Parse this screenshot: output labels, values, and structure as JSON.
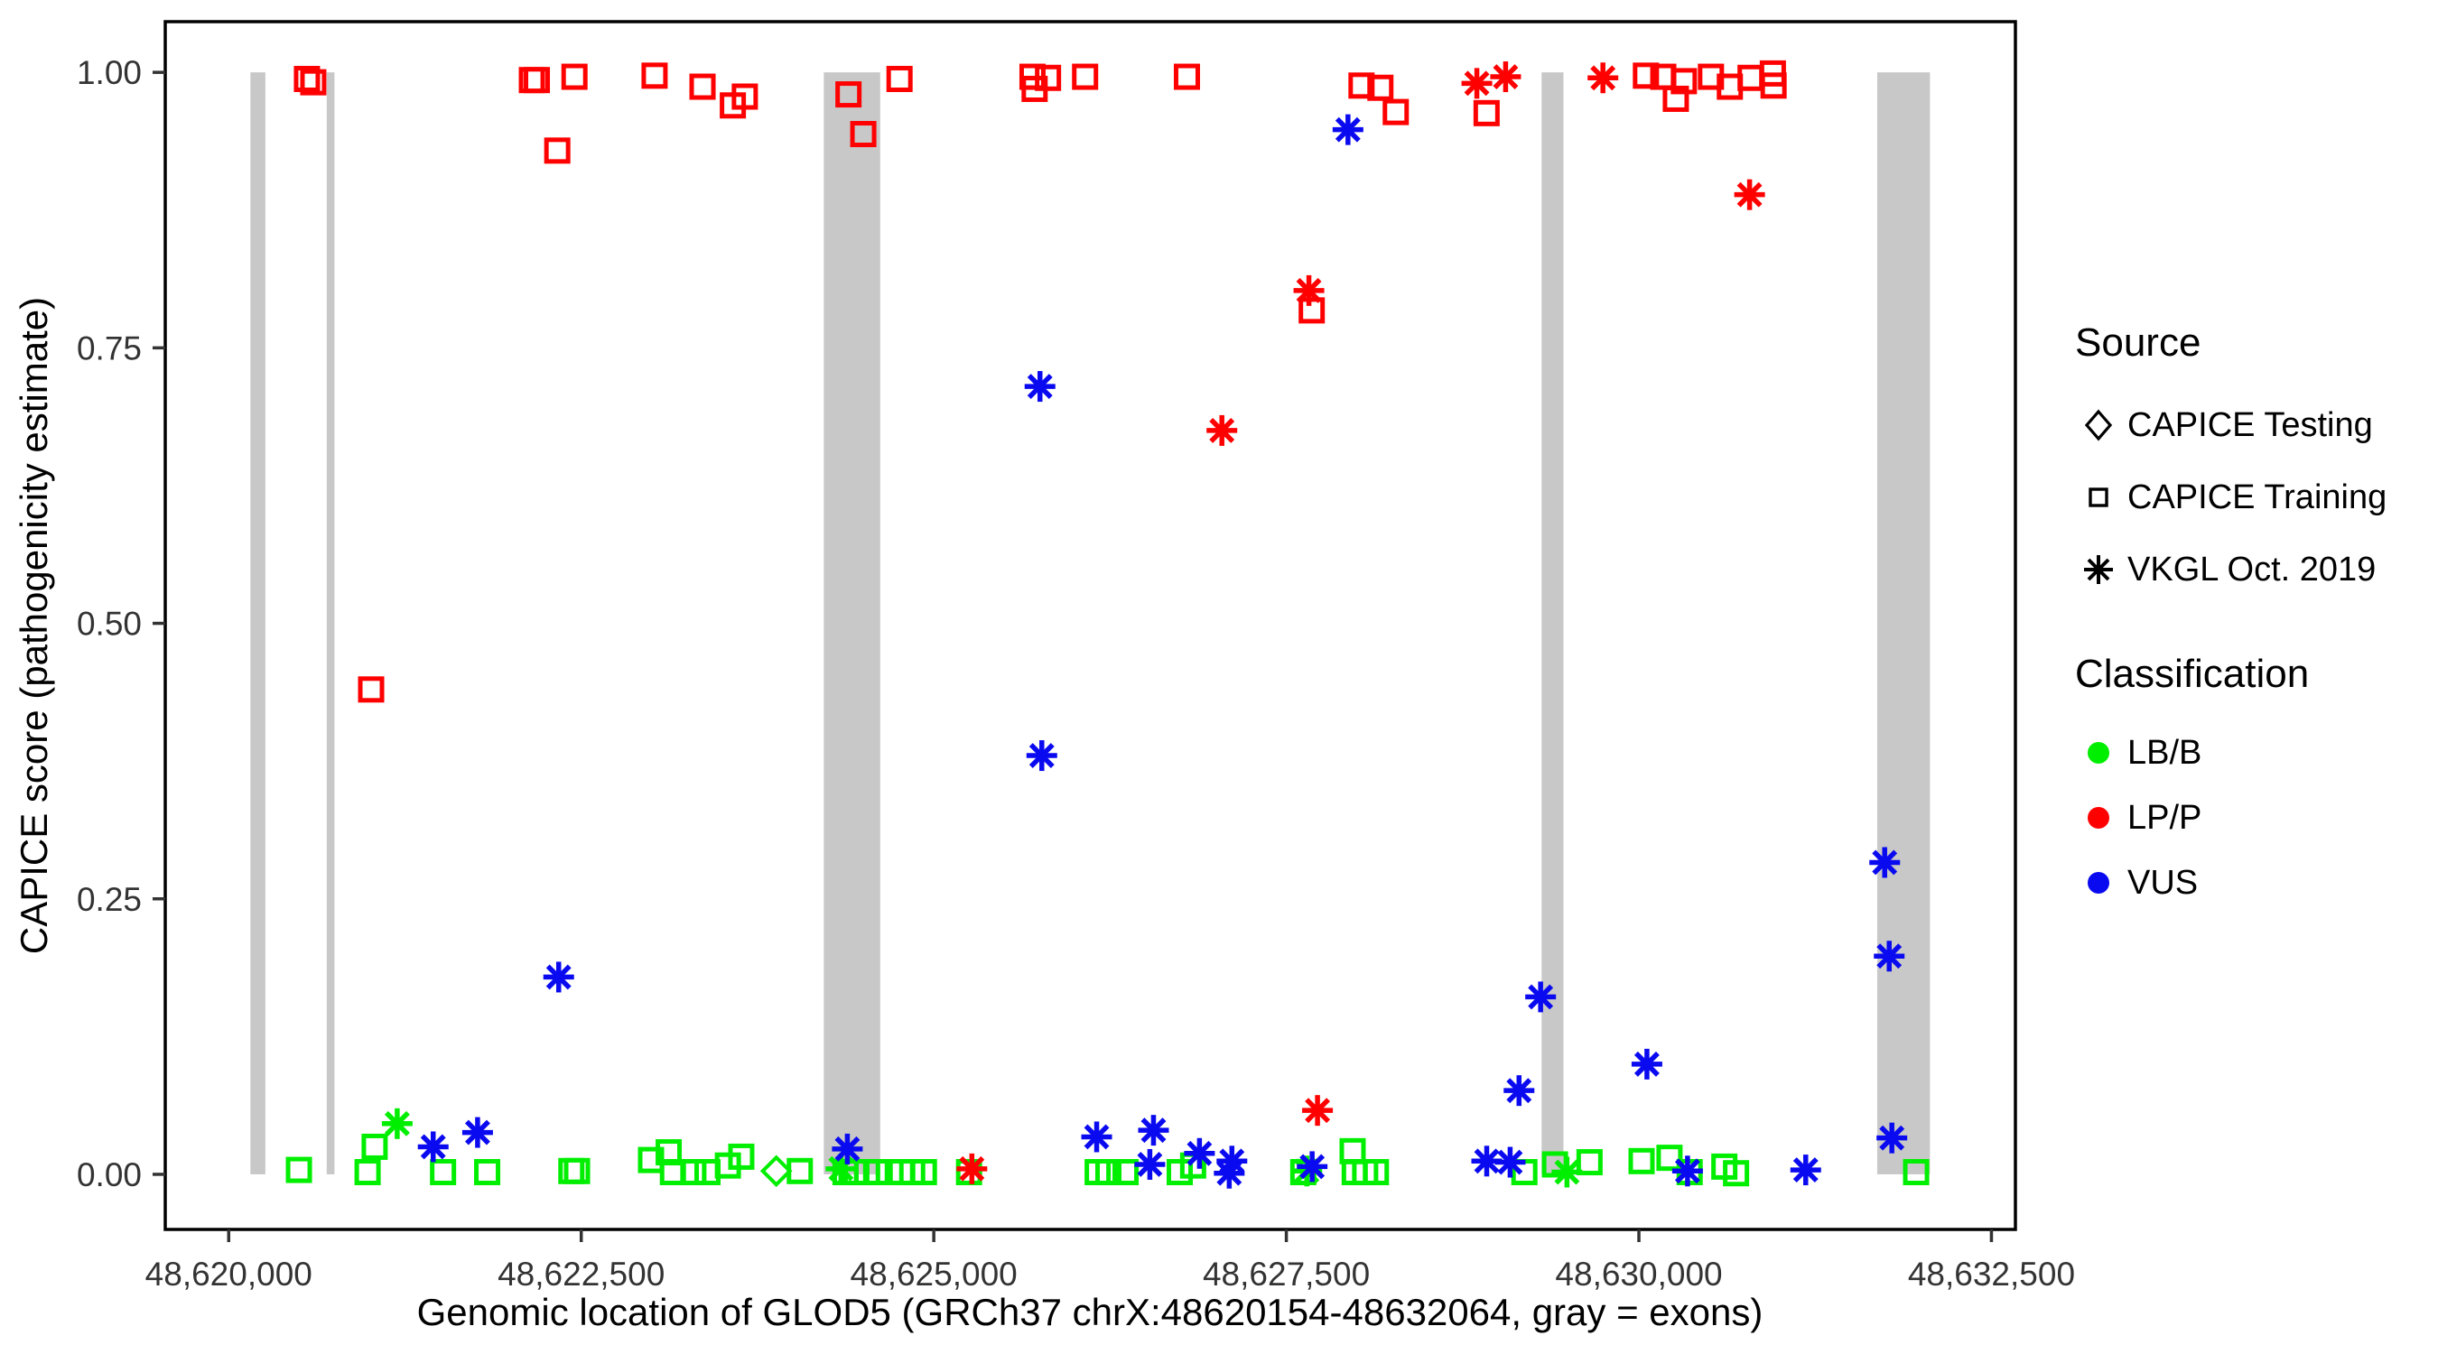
{
  "chart_data": {
    "type": "scatter",
    "title": "",
    "xlabel": "Genomic location of GLOD5 (GRCh37 chrX:48620154-48632064, gray = exons)",
    "ylabel": "CAPICE score (pathogenicity estimate)",
    "xlim": [
      48619550,
      48632670
    ],
    "ylim": [
      -0.05,
      1.046
    ],
    "grid": false,
    "x_ticks": [
      {
        "value": 48620000,
        "label": "48,620,000"
      },
      {
        "value": 48622500,
        "label": "48,622,500"
      },
      {
        "value": 48625000,
        "label": "48,625,000"
      },
      {
        "value": 48627500,
        "label": "48,627,500"
      },
      {
        "value": 48630000,
        "label": "48,630,000"
      },
      {
        "value": 48632500,
        "label": "48,632,500"
      }
    ],
    "y_ticks": [
      {
        "value": 0.0,
        "label": "0.00"
      },
      {
        "value": 0.25,
        "label": "0.25"
      },
      {
        "value": 0.5,
        "label": "0.50"
      },
      {
        "value": 0.75,
        "label": "0.75"
      },
      {
        "value": 1.0,
        "label": "1.00"
      }
    ],
    "exons_note": "gray = exons",
    "exons": [
      [
        48620154,
        48620260
      ],
      [
        48620695,
        48620750
      ],
      [
        48624220,
        48624620
      ],
      [
        48629310,
        48629465
      ],
      [
        48631690,
        48632064
      ]
    ],
    "colors": {
      "LB/B": "#00EE00",
      "LP/P": "#FF0000",
      "VUS": "#0A0AF0",
      "exon": "#C8C8C8",
      "axis_text": "#333333",
      "panel_border": "#000000"
    },
    "series": [
      {
        "source": "CAPICE Training",
        "classification": "LP/P",
        "shape": "square",
        "color": "#FF0000",
        "points": [
          [
            48620555,
            0.994
          ],
          [
            48620600,
            0.991
          ],
          [
            48621010,
            0.44
          ],
          [
            48622150,
            0.993
          ],
          [
            48622185,
            0.993
          ],
          [
            48622330,
            0.929
          ],
          [
            48622452,
            0.996
          ],
          [
            48623020,
            0.997
          ],
          [
            48623360,
            0.987
          ],
          [
            48623575,
            0.97
          ],
          [
            48623660,
            0.978
          ],
          [
            48624395,
            0.98
          ],
          [
            48624500,
            0.944
          ],
          [
            48624757,
            0.994
          ],
          [
            48625700,
            0.996
          ],
          [
            48625715,
            0.985
          ],
          [
            48625810,
            0.995
          ],
          [
            48626073,
            0.996
          ],
          [
            48626795,
            0.996
          ],
          [
            48627680,
            0.784
          ],
          [
            48628033,
            0.988
          ],
          [
            48628167,
            0.986
          ],
          [
            48628276,
            0.964
          ],
          [
            48628920,
            0.963
          ],
          [
            48630050,
            0.997
          ],
          [
            48630173,
            0.996
          ],
          [
            48630262,
            0.976
          ],
          [
            48630319,
            0.992
          ],
          [
            48630511,
            0.996
          ],
          [
            48630645,
            0.987
          ],
          [
            48630792,
            0.995
          ],
          [
            48630950,
            0.999
          ],
          [
            48630955,
            0.988
          ]
        ]
      },
      {
        "source": "CAPICE Training",
        "classification": "LB/B",
        "shape": "square",
        "color": "#00EE00",
        "points": [
          [
            48620498,
            0.004
          ],
          [
            48620985,
            0.002
          ],
          [
            48621035,
            0.025
          ],
          [
            48621520,
            0.002
          ],
          [
            48621833,
            0.002
          ],
          [
            48622430,
            0.003
          ],
          [
            48622470,
            0.003
          ],
          [
            48622995,
            0.013
          ],
          [
            48623120,
            0.02
          ],
          [
            48623150,
            0.002
          ],
          [
            48623295,
            0.002
          ],
          [
            48623395,
            0.002
          ],
          [
            48623540,
            0.008
          ],
          [
            48623635,
            0.016
          ],
          [
            48624050,
            0.003
          ],
          [
            48624374,
            0.002
          ],
          [
            48624451,
            0.002
          ],
          [
            48624527,
            0.002
          ],
          [
            48624591,
            0.002
          ],
          [
            48624770,
            0.002
          ],
          [
            48624847,
            0.002
          ],
          [
            48624930,
            0.002
          ],
          [
            48625250,
            0.002
          ],
          [
            48626162,
            0.002
          ],
          [
            48626238,
            0.002
          ],
          [
            48626360,
            0.002
          ],
          [
            48626744,
            0.002
          ],
          [
            48626839,
            0.008
          ],
          [
            48627620,
            0.002
          ],
          [
            48627970,
            0.021
          ],
          [
            48627985,
            0.002
          ],
          [
            48628059,
            0.002
          ],
          [
            48628135,
            0.002
          ],
          [
            48629188,
            0.002
          ],
          [
            48629405,
            0.009
          ],
          [
            48629650,
            0.011
          ],
          [
            48630019,
            0.012
          ],
          [
            48630217,
            0.015
          ],
          [
            48630360,
            0.002
          ],
          [
            48630606,
            0.007
          ],
          [
            48630689,
            0.001
          ],
          [
            48631966,
            0.002
          ]
        ]
      },
      {
        "source": "CAPICE Testing",
        "classification": "LB/B",
        "shape": "diamond",
        "color": "#00EE00",
        "points": [
          [
            48623883,
            0.003
          ]
        ]
      },
      {
        "source": "VKGL Oct. 2019",
        "classification": "LP/P",
        "shape": "asterisk",
        "color": "#FF0000",
        "points": [
          [
            48625270,
            0.005
          ],
          [
            48627043,
            0.675
          ],
          [
            48627660,
            0.802
          ],
          [
            48627721,
            0.058
          ],
          [
            48628851,
            0.99
          ],
          [
            48629055,
            0.996
          ],
          [
            48629745,
            0.995
          ],
          [
            48630785,
            0.889
          ]
        ]
      },
      {
        "source": "VKGL Oct. 2019",
        "classification": "LB/B",
        "shape": "asterisk",
        "color": "#00EE00",
        "points": [
          [
            48621195,
            0.046
          ],
          [
            48624342,
            0.005
          ],
          [
            48627645,
            0.003
          ],
          [
            48629490,
            0.002
          ]
        ]
      },
      {
        "source": "VKGL Oct. 2019",
        "classification": "VUS",
        "shape": "asterisk",
        "color": "#0A0AF0",
        "points": [
          [
            48621450,
            0.025
          ],
          [
            48621765,
            0.038
          ],
          [
            48622340,
            0.179
          ],
          [
            48624387,
            0.023
          ],
          [
            48625753,
            0.715
          ],
          [
            48625766,
            0.38
          ],
          [
            48626155,
            0.034
          ],
          [
            48626532,
            0.009
          ],
          [
            48626558,
            0.04
          ],
          [
            48626884,
            0.019
          ],
          [
            48627095,
            0.001
          ],
          [
            48627114,
            0.012
          ],
          [
            48627683,
            0.007
          ],
          [
            48627937,
            0.948
          ],
          [
            48628921,
            0.012
          ],
          [
            48629087,
            0.011
          ],
          [
            48629150,
            0.076
          ],
          [
            48629303,
            0.161
          ],
          [
            48630057,
            0.1
          ],
          [
            48630345,
            0.003
          ],
          [
            48631183,
            0.004
          ],
          [
            48631743,
            0.283
          ],
          [
            48631775,
            0.198
          ],
          [
            48631794,
            0.033
          ]
        ]
      }
    ],
    "legend": {
      "position": "right",
      "source": {
        "title": "Source",
        "items": [
          {
            "label": "CAPICE Testing",
            "shape": "diamond"
          },
          {
            "label": "CAPICE Training",
            "shape": "square"
          },
          {
            "label": "VKGL Oct. 2019",
            "shape": "asterisk"
          }
        ]
      },
      "classification": {
        "title": "Classification",
        "items": [
          {
            "label": "LB/B",
            "color": "#00EE00"
          },
          {
            "label": "LP/P",
            "color": "#FF0000"
          },
          {
            "label": "VUS",
            "color": "#0A0AF0"
          }
        ]
      }
    }
  }
}
